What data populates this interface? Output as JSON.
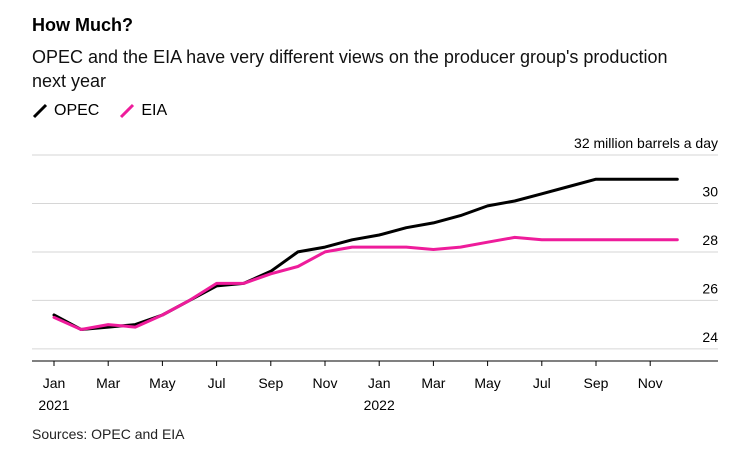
{
  "header": {
    "title": "How Much?",
    "subtitle": "OPEC and the EIA have very different views on the producer group's production next year"
  },
  "legend": [
    {
      "name": "OPEC",
      "color": "#000000"
    },
    {
      "name": "EIA",
      "color": "#ee1c9b"
    }
  ],
  "units_label": "32 million barrels a day",
  "source": "Sources: OPEC and EIA",
  "chart_data": {
    "type": "line",
    "x": [
      "2021-01",
      "2021-02",
      "2021-03",
      "2021-04",
      "2021-05",
      "2021-06",
      "2021-07",
      "2021-08",
      "2021-09",
      "2021-10",
      "2021-11",
      "2021-12",
      "2022-01",
      "2022-02",
      "2022-03",
      "2022-04",
      "2022-05",
      "2022-06",
      "2022-07",
      "2022-08",
      "2022-09",
      "2022-10",
      "2022-11",
      "2022-12"
    ],
    "series": [
      {
        "name": "OPEC",
        "color": "#000000",
        "values": [
          25.4,
          24.8,
          24.9,
          25.0,
          25.4,
          26.0,
          26.6,
          26.7,
          27.2,
          28.0,
          28.2,
          28.5,
          28.7,
          29.0,
          29.2,
          29.5,
          29.9,
          30.1,
          30.4,
          30.7,
          31.0,
          31.0,
          31.0,
          31.0
        ]
      },
      {
        "name": "EIA",
        "color": "#ee1c9b",
        "values": [
          25.3,
          24.8,
          25.0,
          24.9,
          25.4,
          26.0,
          26.7,
          26.7,
          27.1,
          27.4,
          28.0,
          28.2,
          28.2,
          28.2,
          28.1,
          28.2,
          28.4,
          28.6,
          28.5,
          28.5,
          28.5,
          28.5,
          28.5,
          28.5
        ]
      }
    ],
    "x_ticks": [
      {
        "label": "Jan",
        "sub": "2021"
      },
      {
        "label": "Mar",
        "sub": ""
      },
      {
        "label": "May",
        "sub": ""
      },
      {
        "label": "Jul",
        "sub": ""
      },
      {
        "label": "Sep",
        "sub": ""
      },
      {
        "label": "Nov",
        "sub": ""
      },
      {
        "label": "Jan",
        "sub": "2022"
      },
      {
        "label": "Mar",
        "sub": ""
      },
      {
        "label": "May",
        "sub": ""
      },
      {
        "label": "Jul",
        "sub": ""
      },
      {
        "label": "Sep",
        "sub": ""
      },
      {
        "label": "Nov",
        "sub": ""
      }
    ],
    "y_ticks": [
      24,
      26,
      28,
      30,
      32
    ],
    "ylim": [
      23.5,
      32
    ],
    "grid": true,
    "title": "How Much?",
    "xlabel": "",
    "ylabel": ""
  }
}
